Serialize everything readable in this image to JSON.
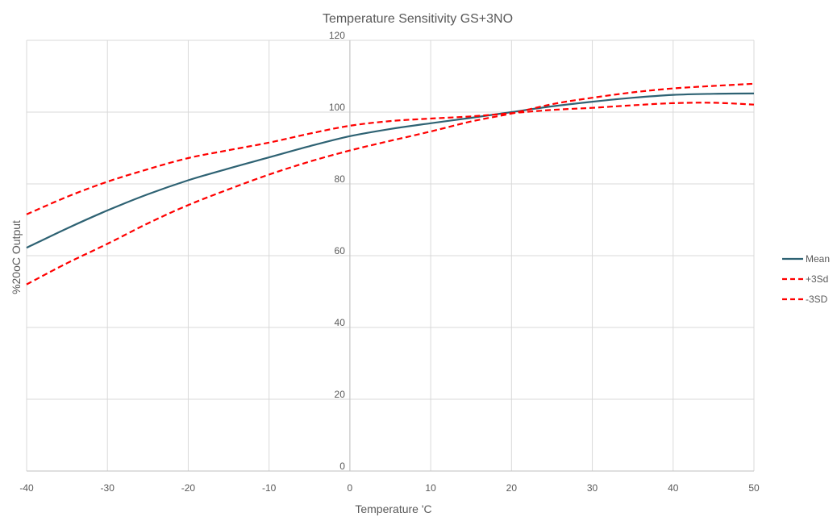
{
  "chart_data": {
    "type": "line",
    "title": "Temperature Sensitivity GS+3NO",
    "xlabel": "Temperature 'C",
    "ylabel": "%20oC Output",
    "xlim": [
      -40,
      50
    ],
    "ylim": [
      0,
      120
    ],
    "x_ticks": [
      "-40",
      "-30",
      "-20",
      "-10",
      "0",
      "10",
      "20",
      "30",
      "40",
      "50"
    ],
    "y_ticks": [
      "0",
      "20",
      "40",
      "60",
      "80",
      "100",
      "120"
    ],
    "grid": true,
    "legend_position": "right",
    "series": [
      {
        "name": "Mean",
        "color": "#2e6273",
        "dash": "solid",
        "points": [
          [
            -40,
            62.2
          ],
          [
            -35,
            67.6
          ],
          [
            -30,
            72.6
          ],
          [
            -25,
            77.1
          ],
          [
            -20,
            81.0
          ],
          [
            -15,
            84.3
          ],
          [
            -10,
            87.4
          ],
          [
            -5,
            90.5
          ],
          [
            0,
            93.3
          ],
          [
            5,
            95.3
          ],
          [
            10,
            96.9
          ],
          [
            15,
            98.4
          ],
          [
            20,
            100.0
          ],
          [
            25,
            101.6
          ],
          [
            30,
            102.9
          ],
          [
            35,
            104.0
          ],
          [
            40,
            104.8
          ],
          [
            45,
            105.1
          ],
          [
            50,
            105.2
          ]
        ]
      },
      {
        "name": "+3Sd",
        "color": "#ff0000",
        "dash": "dashed",
        "points": [
          [
            -40,
            71.5
          ],
          [
            -35,
            76.4
          ],
          [
            -30,
            80.6
          ],
          [
            -25,
            84.1
          ],
          [
            -20,
            87.2
          ],
          [
            -15,
            89.4
          ],
          [
            -10,
            91.5
          ],
          [
            -5,
            94.0
          ],
          [
            0,
            96.2
          ],
          [
            5,
            97.5
          ],
          [
            10,
            98.2
          ],
          [
            15,
            98.8
          ],
          [
            20,
            99.7
          ],
          [
            25,
            100.6
          ],
          [
            30,
            101.2
          ],
          [
            35,
            101.9
          ],
          [
            40,
            102.5
          ],
          [
            45,
            102.6
          ],
          [
            50,
            102.1
          ]
        ]
      },
      {
        "name": "-3SD",
        "color": "#ff0000",
        "dash": "dashed",
        "points": [
          [
            -40,
            52.0
          ],
          [
            -35,
            57.9
          ],
          [
            -30,
            63.3
          ],
          [
            -25,
            69.0
          ],
          [
            -20,
            74.1
          ],
          [
            -15,
            78.5
          ],
          [
            -10,
            82.6
          ],
          [
            -5,
            86.2
          ],
          [
            0,
            89.3
          ],
          [
            5,
            92.0
          ],
          [
            10,
            94.6
          ],
          [
            15,
            97.4
          ],
          [
            20,
            99.6
          ],
          [
            25,
            102.2
          ],
          [
            30,
            104.0
          ],
          [
            35,
            105.5
          ],
          [
            40,
            106.6
          ],
          [
            45,
            107.3
          ],
          [
            50,
            107.9
          ]
        ]
      }
    ]
  }
}
